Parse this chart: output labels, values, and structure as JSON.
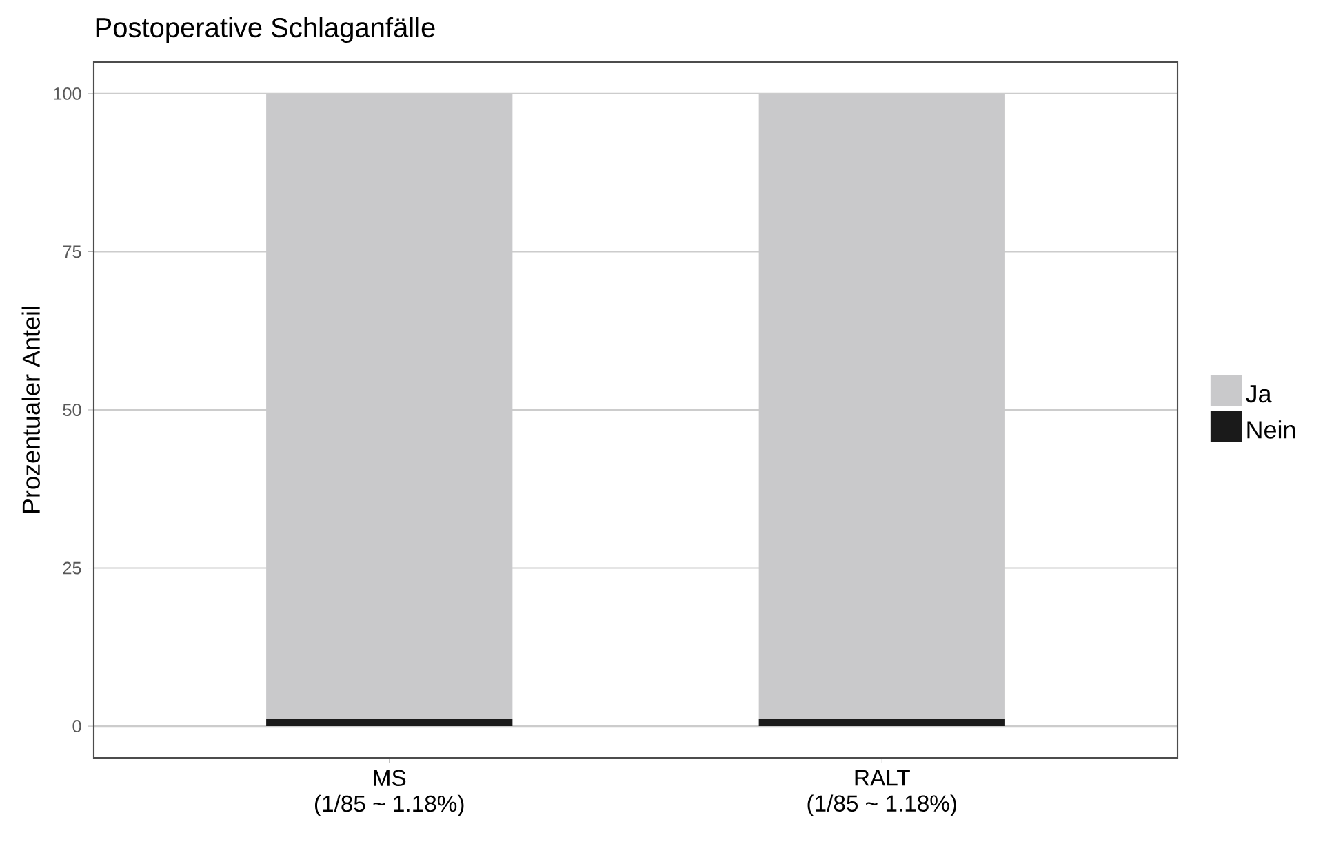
{
  "chart_data": {
    "type": "bar",
    "title": "Postoperative Schlaganfälle",
    "ylabel": "Prozentualer Anteil",
    "categories": [
      "MS\n(1/85 ~ 1.18%)",
      "RALT\n(1/85 ~ 1.18%)"
    ],
    "stacked": true,
    "series": [
      {
        "name": "Nein",
        "color": "#1a1a1a",
        "values": [
          1.2,
          1.2
        ]
      },
      {
        "name": "Ja",
        "color": "#c9c9cb",
        "values": [
          98.8,
          98.8
        ]
      }
    ],
    "ylim": [
      -5,
      105
    ],
    "yticks": [
      0,
      25,
      50,
      75,
      100
    ],
    "grid": "y",
    "legend": "right"
  }
}
